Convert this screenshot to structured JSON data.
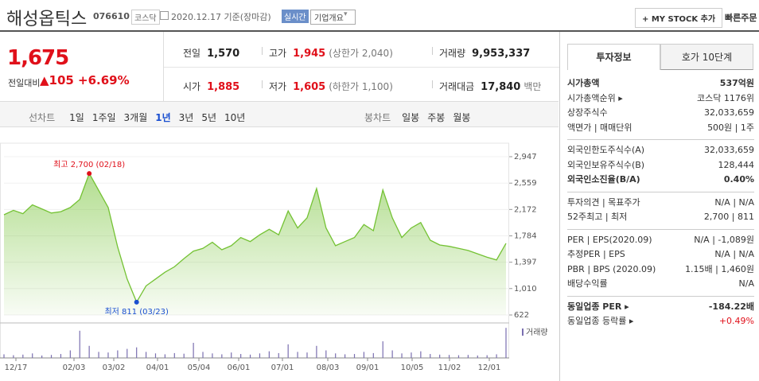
{
  "header": {
    "title": "해성옵틱스",
    "code": "076610",
    "market": "코스닥",
    "date": "2020.12.17 기준(장마감)",
    "realtime": "실시간",
    "overview": "기업개요",
    "mystock": "+ MY STOCK 추가",
    "quick_order": "빠른주문"
  },
  "price": {
    "current": "1,675",
    "change_label": "전일대비",
    "change": "▲105",
    "change_rate": "+6.69%"
  },
  "stats": [
    {
      "label": "전일",
      "value": "1,570"
    },
    {
      "label": "고가",
      "value": "1,945",
      "note": "(상한가 2,040)",
      "color": "#e0101a"
    },
    {
      "label": "거래량",
      "value": "9,953,337"
    },
    {
      "label": "시가",
      "value": "1,885",
      "color": "#e0101a"
    },
    {
      "label": "저가",
      "value": "1,605",
      "note": "(하한가 1,100)",
      "color": "#e0101a"
    },
    {
      "label": "거래대금",
      "value": "17,840",
      "note": "백만"
    }
  ],
  "period_tabs": {
    "line_label": "선차트",
    "line": [
      "1일",
      "1주일",
      "3개월",
      "1년",
      "3년",
      "5년",
      "10년"
    ],
    "active": 3,
    "candle_label": "봉차트",
    "candle": [
      "일봉",
      "주봉",
      "월봉"
    ]
  },
  "chart": {
    "type": "line",
    "color": "#74c234",
    "values": [
      2094,
      2160,
      2110,
      2240,
      2180,
      2120,
      2140,
      2200,
      2320,
      2700,
      2450,
      2200,
      1620,
      1150,
      811,
      1050,
      1150,
      1250,
      1330,
      1450,
      1560,
      1600,
      1690,
      1580,
      1640,
      1760,
      1700,
      1800,
      1880,
      1800,
      2150,
      1900,
      2050,
      2480,
      1900,
      1640,
      1700,
      1760,
      1950,
      1860,
      2460,
      2050,
      1760,
      1900,
      1980,
      1720,
      1650,
      1630,
      1600,
      1570,
      1520,
      1470,
      1430,
      1675
    ],
    "volume": [
      1200000,
      900000,
      1100000,
      1500000,
      800000,
      1000000,
      1300000,
      2500000,
      9000000,
      4000000,
      2000000,
      1800000,
      2500000,
      3000000,
      3500000,
      2000000,
      1500000,
      1200000,
      1600000,
      1400000,
      5000000,
      2000000,
      1500000,
      1200000,
      1800000,
      1300000,
      1100000,
      1500000,
      2200000,
      1600000,
      4500000,
      2000000,
      1800000,
      4000000,
      2500000,
      1500000,
      1200000,
      1300000,
      2000000,
      1600000,
      5500000,
      2500000,
      1500000,
      1800000,
      2200000,
      1300000,
      1100000,
      1000000,
      900000,
      1000000,
      800000,
      900000,
      1200000,
      9953337
    ],
    "volume_color": "#7a6fb0",
    "volume_label": "거래량",
    "vlim": [
      0,
      10000000
    ],
    "ylim": [
      622,
      2947
    ],
    "yticks": [
      {
        "value": 2947,
        "label": "2,947"
      },
      {
        "value": 2559,
        "label": "2,559"
      },
      {
        "value": 2172,
        "label": "2,172"
      },
      {
        "value": 1784,
        "label": "1,784"
      },
      {
        "value": 1397,
        "label": "1,397"
      },
      {
        "value": 1010,
        "label": "1,010"
      },
      {
        "value": 622,
        "label": "622"
      }
    ],
    "x_labels": [
      "12/17",
      "02/03",
      "03/02",
      "04/01",
      "05/04",
      "06/01",
      "07/01",
      "08/03",
      "09/01",
      "10/05",
      "11/02",
      "12/01"
    ],
    "high_label": "최고 2,700 (02/18)",
    "low_label": "최저 811 (03/23)"
  },
  "info": {
    "tabs": [
      "투자정보",
      "호가 10단계"
    ],
    "groups": [
      [
        {
          "label": "시가총액",
          "value": "537억원",
          "bold": true
        },
        {
          "label": "시가총액순위 ▸",
          "value": "코스닥 1176위"
        },
        {
          "label": "상장주식수",
          "value": "32,033,659"
        },
        {
          "label": "액면가 | 매매단위",
          "value": "500원 | 1주"
        }
      ],
      [
        {
          "label": "외국인한도주식수(A)",
          "value": "32,033,659"
        },
        {
          "label": "외국인보유주식수(B)",
          "value": "128,444"
        },
        {
          "label": "외국인소진율(B/A)",
          "value": "0.40%",
          "bold": true
        }
      ],
      [
        {
          "label": "투자의견 | 목표주가",
          "value": "N/A | N/A"
        },
        {
          "label": "52주최고 | 최저",
          "value": "2,700 | 811"
        }
      ],
      [
        {
          "label": "PER | EPS(2020.09)",
          "value": "N/A | -1,089원"
        },
        {
          "label": "추정PER | EPS",
          "value": "N/A | N/A"
        },
        {
          "label": "PBR | BPS (2020.09)",
          "value": "1.15배 | 1,460원"
        },
        {
          "label": "배당수익률",
          "value": "N/A"
        }
      ],
      [
        {
          "label": "동일업종 PER ▸",
          "value": "-184.22배",
          "bold": true
        },
        {
          "label": "동일업종 등락률 ▸",
          "value": "+0.49%",
          "color": "#e0101a"
        }
      ]
    ]
  }
}
